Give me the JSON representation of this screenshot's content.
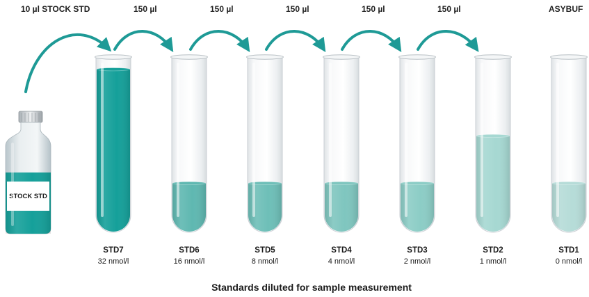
{
  "labels": {
    "stock_volume": "10 µl STOCK STD",
    "transfer_volume": "150 µl",
    "buffer": "ASYBUF",
    "bottle": "STOCK STD",
    "caption": "Standards diluted for sample measurement"
  },
  "colors": {
    "arrow": "#1e9a96",
    "stock_liquid": "#15a09a",
    "tube_glass": "#eef0f2",
    "tube_outline": "#c9ced3"
  },
  "standards": [
    {
      "name": "STD7",
      "concentration": "32 nmol/l",
      "fill_level": 0.93,
      "color": "#15a09a"
    },
    {
      "name": "STD6",
      "concentration": "16 nmol/l",
      "fill_level": 0.28,
      "color": "#5fb8b1"
    },
    {
      "name": "STD5",
      "concentration": "8 nmol/l",
      "fill_level": 0.28,
      "color": "#6ebfb8"
    },
    {
      "name": "STD4",
      "concentration": "4 nmol/l",
      "fill_level": 0.28,
      "color": "#7fc6bf"
    },
    {
      "name": "STD3",
      "concentration": "2 nmol/l",
      "fill_level": 0.28,
      "color": "#8ccdc6"
    },
    {
      "name": "STD2",
      "concentration": "1 nmol/l",
      "fill_level": 0.55,
      "color": "#a6d8d2"
    },
    {
      "name": "STD1",
      "concentration": "0 nmol/l",
      "fill_level": 0.28,
      "color": "#b6dcd8"
    }
  ]
}
